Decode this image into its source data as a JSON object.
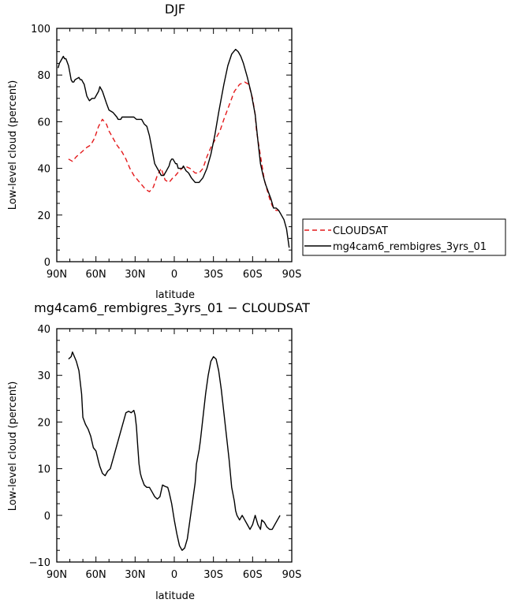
{
  "chart_data": [
    {
      "type": "line",
      "title": "DJF",
      "xlabel": "latitude",
      "ylabel": "Low-level cloud (percent)",
      "xlim": [
        90,
        -90
      ],
      "ylim": [
        0,
        100
      ],
      "xticks": [
        90,
        60,
        30,
        0,
        -30,
        -60,
        -90
      ],
      "xtick_labels": [
        "90N",
        "60N",
        "30N",
        "0",
        "30S",
        "60S",
        "90S"
      ],
      "yticks": [
        0,
        20,
        40,
        60,
        80,
        100
      ],
      "ytick_labels": [
        "0",
        "20",
        "40",
        "60",
        "80",
        "100"
      ],
      "legend_position": "right",
      "grid": false,
      "series": [
        {
          "name": "CLOUDSAT",
          "color": "#e41a1c",
          "style": "dashed",
          "x": [
            81,
            78,
            75,
            71,
            67,
            64,
            61,
            58,
            55,
            52,
            50,
            47,
            44,
            40,
            37,
            34,
            31,
            28,
            25,
            22,
            19,
            16,
            13,
            10,
            7,
            4,
            1,
            -1,
            -4,
            -8,
            -12,
            -16,
            -19,
            -22,
            -25,
            -28,
            -31,
            -35,
            -38,
            -42,
            -46,
            -50,
            -54,
            -57,
            -60,
            -62,
            -63,
            -65,
            -67,
            -69,
            -71,
            -73,
            -75,
            -78,
            -80
          ],
          "y": [
            44,
            43,
            45,
            47,
            49,
            50,
            53,
            58,
            61,
            59,
            56,
            53,
            50,
            47,
            44,
            40,
            37,
            35,
            33,
            31,
            30,
            32,
            37,
            40,
            35,
            34,
            36,
            37,
            39,
            41,
            40,
            38,
            38,
            40,
            45,
            49,
            52,
            56,
            61,
            67,
            73,
            76,
            77,
            76,
            70,
            63,
            56,
            49,
            42,
            35,
            31,
            27,
            24,
            22,
            22
          ]
        },
        {
          "name": "mg4cam6_rembigres_3yrs_01",
          "color": "#000000",
          "style": "solid",
          "x": [
            89,
            88,
            87,
            85,
            84,
            83,
            81,
            80,
            79,
            78,
            77,
            76,
            73,
            72,
            71,
            70,
            69,
            67,
            66,
            65,
            63,
            61,
            59,
            58,
            57,
            55,
            52,
            50,
            47,
            44,
            43,
            42,
            41,
            40,
            39,
            38,
            37,
            36,
            35,
            34,
            33,
            31,
            29,
            27,
            25,
            23,
            21,
            19,
            18,
            17,
            16,
            15,
            13,
            11,
            10,
            9,
            8,
            7,
            6,
            4,
            3,
            2,
            1,
            -1,
            -2,
            -3,
            -4,
            -5,
            -6,
            -7,
            -8,
            -9,
            -11,
            -13,
            -16,
            -19,
            -22,
            -25,
            -28,
            -31,
            -34,
            -38,
            -41,
            -44,
            -47,
            -49,
            -51,
            -53,
            -56,
            -59,
            -62,
            -64,
            -66,
            -68,
            -69,
            -70,
            -72,
            -74,
            -75,
            -76,
            -78,
            -80,
            -82,
            -84,
            -86,
            -88
          ],
          "y": [
            83,
            85,
            86,
            88,
            87,
            87,
            84,
            81,
            78,
            77,
            77,
            78,
            79,
            78,
            78,
            77,
            76,
            71,
            70,
            69,
            70,
            70,
            72,
            73,
            75,
            73,
            68,
            65,
            64,
            62,
            61,
            61,
            61,
            62,
            62,
            62,
            62,
            62,
            62,
            62,
            62,
            62,
            61,
            61,
            61,
            59,
            58,
            54,
            51,
            48,
            45,
            42,
            40,
            38,
            37,
            37,
            37,
            38,
            39,
            41,
            43,
            44,
            44,
            42,
            42,
            40,
            40,
            40,
            40,
            41,
            40,
            39,
            38,
            36,
            34,
            34,
            36,
            40,
            46,
            54,
            64,
            76,
            84,
            89,
            91,
            90,
            88,
            85,
            79,
            72,
            63,
            52,
            42,
            37,
            35,
            33,
            30,
            27,
            25,
            23,
            23,
            22,
            20,
            18,
            14,
            6
          ]
        }
      ]
    },
    {
      "type": "line",
      "title": "mg4cam6_rembigres_3yrs_01 − CLOUDSAT",
      "xlabel": "latitude",
      "ylabel": "Low-level cloud (percent)",
      "xlim": [
        90,
        -90
      ],
      "ylim": [
        -10,
        40
      ],
      "xticks": [
        90,
        60,
        30,
        0,
        -30,
        -60,
        -90
      ],
      "xtick_labels": [
        "90N",
        "60N",
        "30N",
        "0",
        "30S",
        "60S",
        "90S"
      ],
      "yticks": [
        -10,
        0,
        10,
        20,
        30,
        40
      ],
      "ytick_labels": [
        "−10",
        "0",
        "10",
        "20",
        "30",
        "40"
      ],
      "grid": false,
      "series": [
        {
          "color": "#000000",
          "style": "solid",
          "x": [
            81,
            79,
            78,
            75,
            73,
            71,
            70,
            68,
            66,
            64,
            62,
            60,
            58,
            57,
            55,
            53,
            51,
            49,
            47,
            45,
            43,
            41,
            39,
            37,
            35,
            33,
            31,
            30,
            29,
            28,
            27,
            26,
            25,
            23,
            21,
            19,
            17,
            15,
            13,
            11,
            9,
            7,
            5,
            4,
            2,
            0,
            -2,
            -4,
            -6,
            -8,
            -10,
            -12,
            -14,
            -16,
            -17,
            -18,
            -19,
            -20,
            -22,
            -24,
            -26,
            -28,
            -30,
            -32,
            -34,
            -36,
            -38,
            -40,
            -42,
            -44,
            -46,
            -47,
            -48,
            -50,
            -52,
            -54,
            -56,
            -58,
            -60,
            -62,
            -64,
            -66,
            -67,
            -69,
            -71,
            -73,
            -75,
            -77,
            -79,
            -81
          ],
          "y": [
            33.5,
            34,
            35,
            33,
            31,
            26,
            21,
            19.5,
            18.5,
            17,
            14.5,
            13.8,
            11.5,
            10.5,
            9,
            8.5,
            9.5,
            10,
            12,
            14,
            16,
            18,
            20,
            22,
            22.3,
            22,
            22.5,
            21.5,
            19,
            15,
            11,
            9,
            8,
            6.5,
            6,
            6,
            5,
            4,
            3.5,
            4,
            6.5,
            6.2,
            6,
            5,
            2.5,
            -1,
            -4,
            -6.5,
            -7.5,
            -7,
            -5,
            -1,
            3,
            7,
            11,
            12.5,
            14,
            16,
            21,
            26,
            30,
            33,
            34,
            33.5,
            31,
            27,
            22,
            17,
            12,
            6,
            3,
            1,
            0,
            -1,
            0,
            -1,
            -2,
            -3,
            -2,
            0,
            -2,
            -3,
            -1,
            -1.5,
            -2.5,
            -3,
            -3,
            -2,
            -1,
            0
          ]
        }
      ]
    }
  ]
}
